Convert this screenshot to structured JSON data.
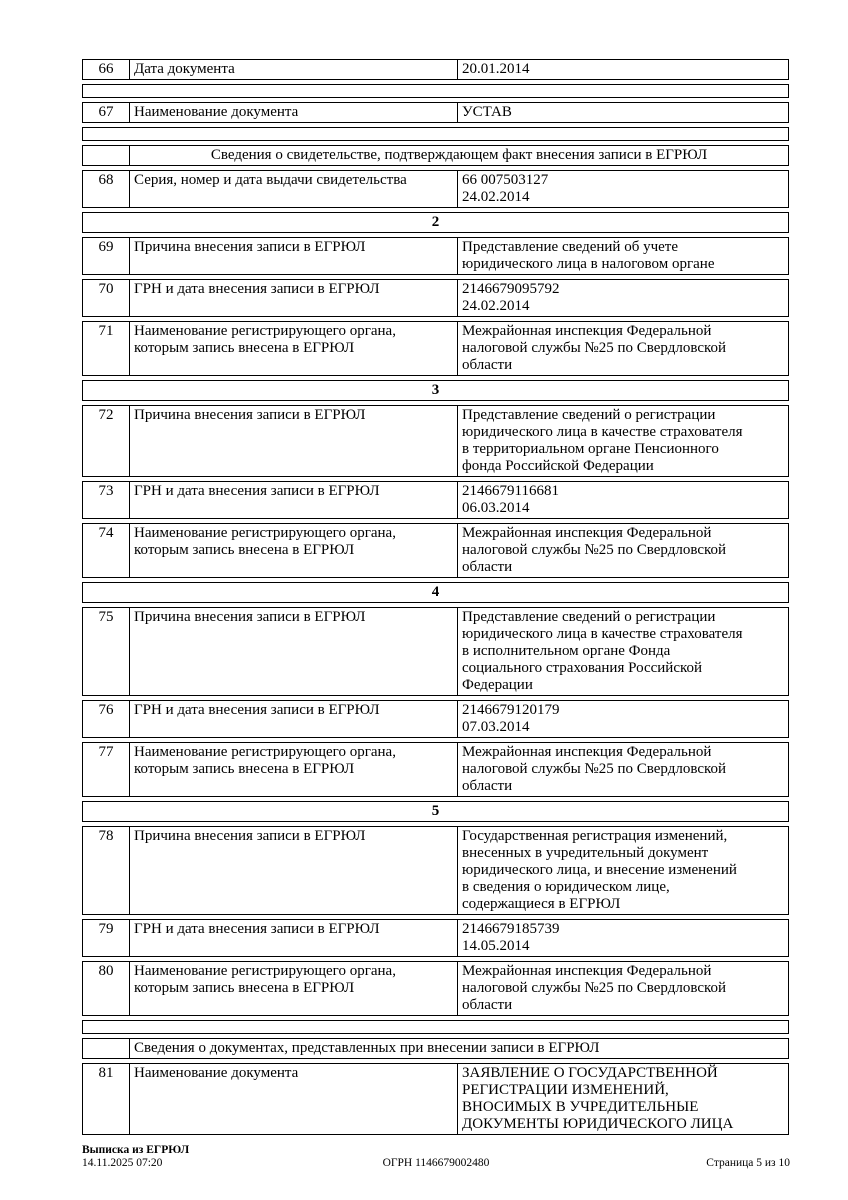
{
  "document": {
    "rows": [
      {
        "type": "item",
        "num": "66",
        "label": "Дата документа",
        "value": "20.01.2014"
      },
      {
        "type": "spacer"
      },
      {
        "type": "item",
        "num": "67",
        "label": "Наименование документа",
        "value": "УСТАВ"
      },
      {
        "type": "spacer"
      },
      {
        "type": "section",
        "align": "center",
        "text": "Сведения о свидетельстве, подтверждающем факт внесения записи в ЕГРЮЛ"
      },
      {
        "type": "item",
        "num": "68",
        "label": "Серия, номер и дата выдачи свидетельства",
        "value": "66 007503127\n24.02.2014"
      },
      {
        "type": "group",
        "text": "2"
      },
      {
        "type": "item",
        "num": "69",
        "label": "Причина внесения записи в ЕГРЮЛ",
        "value": "Представление сведений об учете\nюридического лица в налоговом органе"
      },
      {
        "type": "item",
        "num": "70",
        "label": "ГРН и дата внесения записи в ЕГРЮЛ",
        "value": "2146679095792\n24.02.2014"
      },
      {
        "type": "item",
        "num": "71",
        "label": "Наименование регистрирующего органа,\nкоторым запись внесена в ЕГРЮЛ",
        "value": "Межрайонная инспекция Федеральной\nналоговой службы №25 по Свердловской\nобласти"
      },
      {
        "type": "group",
        "text": "3"
      },
      {
        "type": "item",
        "num": "72",
        "label": "Причина внесения записи в ЕГРЮЛ",
        "value": "Представление сведений о регистрации\nюридического лица в качестве страхователя\nв территориальном органе Пенсионного\nфонда Российской Федерации"
      },
      {
        "type": "item",
        "num": "73",
        "label": "ГРН и дата внесения записи в ЕГРЮЛ",
        "value": "2146679116681\n06.03.2014"
      },
      {
        "type": "item",
        "num": "74",
        "label": "Наименование регистрирующего органа,\nкоторым запись внесена в ЕГРЮЛ",
        "value": "Межрайонная инспекция Федеральной\nналоговой службы №25 по Свердловской\nобласти"
      },
      {
        "type": "group",
        "text": "4"
      },
      {
        "type": "item",
        "num": "75",
        "label": "Причина внесения записи в ЕГРЮЛ",
        "value": "Представление сведений о регистрации\nюридического лица в качестве страхователя\nв исполнительном органе Фонда\nсоциального страхования Российской\nФедерации"
      },
      {
        "type": "item",
        "num": "76",
        "label": "ГРН и дата внесения записи в ЕГРЮЛ",
        "value": "2146679120179\n07.03.2014"
      },
      {
        "type": "item",
        "num": "77",
        "label": "Наименование регистрирующего органа,\nкоторым запись внесена в ЕГРЮЛ",
        "value": "Межрайонная инспекция Федеральной\nналоговой службы №25 по Свердловской\nобласти"
      },
      {
        "type": "group",
        "text": "5"
      },
      {
        "type": "item",
        "num": "78",
        "label": "Причина внесения записи в ЕГРЮЛ",
        "value": "Государственная регистрация изменений,\nвнесенных в учредительный документ\nюридического лица, и внесение изменений\nв сведения о юридическом лице,\nсодержащиеся в ЕГРЮЛ"
      },
      {
        "type": "item",
        "num": "79",
        "label": "ГРН и дата внесения записи в ЕГРЮЛ",
        "value": "2146679185739\n14.05.2014"
      },
      {
        "type": "item",
        "num": "80",
        "label": "Наименование регистрирующего органа,\nкоторым запись внесена в ЕГРЮЛ",
        "value": "Межрайонная инспекция Федеральной\nналоговой службы №25 по Свердловской\nобласти"
      },
      {
        "type": "spacer"
      },
      {
        "type": "section",
        "align": "left",
        "text": "Сведения о документах, представленных при внесении записи в ЕГРЮЛ"
      },
      {
        "type": "item",
        "num": "81",
        "label": "Наименование документа",
        "value": "ЗАЯВЛЕНИЕ О ГОСУДАРСТВЕННОЙ\nРЕГИСТРАЦИИ ИЗМЕНЕНИЙ,\nВНОСИМЫХ В УЧРЕДИТЕЛЬНЫЕ\nДОКУМЕНТЫ  ЮРИДИЧЕСКОГО ЛИЦА"
      }
    ]
  },
  "footer": {
    "doc_title": "Выписка из ЕГРЮЛ",
    "datetime": "14.11.2025 07:20",
    "ogrn": "ОГРН 1146679002480",
    "page_number": "Страница 5 из 10"
  }
}
